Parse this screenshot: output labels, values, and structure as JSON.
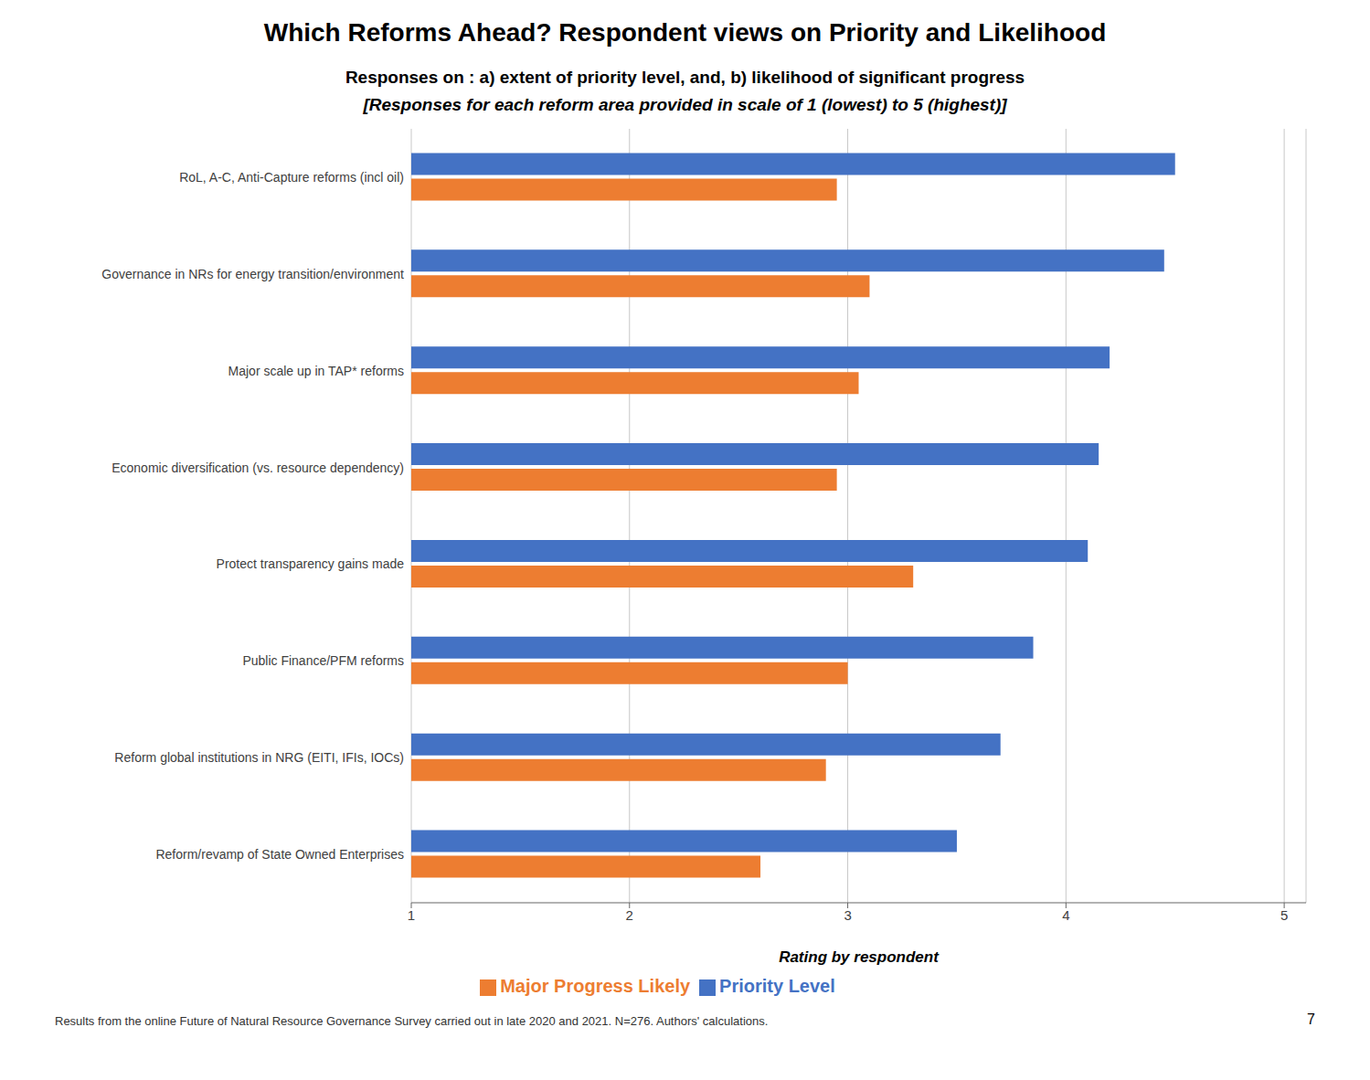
{
  "chart_data": {
    "type": "bar",
    "orientation": "horizontal",
    "title": "Which Reforms Ahead? Respondent views on  Priority and Likelihood",
    "subtitle": [
      "Responses on : a) extent of priority level, and, b) likelihood of significant progress",
      "[Responses for each reform area provided in scale of 1 (lowest) to 5 (highest)]"
    ],
    "x_label": "Rating by respondent",
    "annotations": [
      "Results from the online Future of Natural Resource Governance Survey carried out in late 2020 and 2021. N=276. Authors' calculations.",
      "7"
    ],
    "categories": [
      "RoL, A-C, Anti-Capture reforms (incl oil)",
      "Governance in NRs for energy transition/environment",
      "Major scale up in TAP* reforms",
      "Economic diversification (vs. resource dependency)",
      "Protect transparency gains made",
      "Public Finance/PFM reforms",
      "Reform global institutions in NRG (EITI, IFIs, IOCs)",
      "Reform/revamp of State Owned Enterprises"
    ],
    "series": [
      {
        "name": "Priority Level",
        "color": "#4472C4",
        "values": [
          4.5,
          4.45,
          4.2,
          4.15,
          4.1,
          3.85,
          3.7,
          3.5
        ]
      },
      {
        "name": "Major Progress Likely",
        "color": "#ED7D31",
        "values": [
          2.95,
          3.1,
          3.05,
          2.95,
          3.3,
          3.0,
          2.9,
          2.6
        ]
      }
    ],
    "xlim": [
      1,
      5.1
    ],
    "xticks": [
      1,
      2,
      3,
      4,
      5
    ],
    "grid": true,
    "legend": "bottom"
  }
}
